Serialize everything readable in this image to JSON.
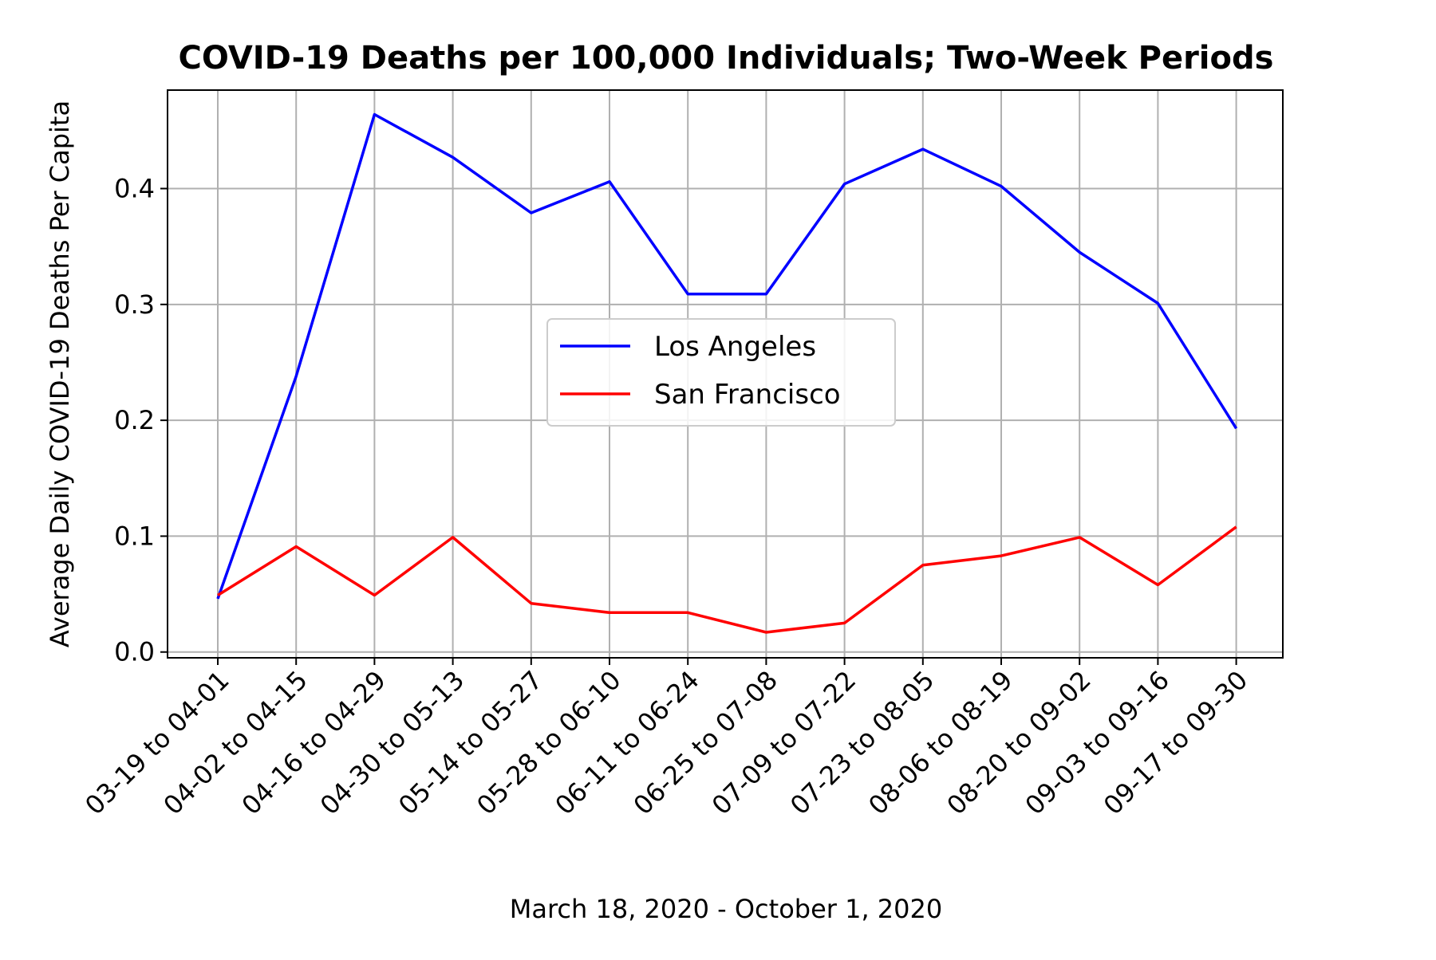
{
  "chart_data": {
    "type": "line",
    "title": "COVID-19 Deaths per 100,000 Individuals; Two-Week Periods",
    "xlabel": "March 18, 2020 - October 1, 2020",
    "ylabel": "Average Daily COVID-19 Deaths Per Capita",
    "categories": [
      "03-19 to 04-01",
      "04-02 to 04-15",
      "04-16 to 04-29",
      "04-30 to 05-13",
      "05-14 to 05-27",
      "05-28 to 06-10",
      "06-11 to 06-24",
      "06-25 to 07-08",
      "07-09 to 07-22",
      "07-23 to 08-05",
      "08-06 to 08-19",
      "08-20 to 09-02",
      "09-03 to 09-16",
      "09-17 to 09-30"
    ],
    "series": [
      {
        "name": "Los Angeles",
        "color": "#0000ff",
        "values": [
          0.046,
          0.238,
          0.464,
          0.427,
          0.379,
          0.406,
          0.309,
          0.309,
          0.404,
          0.434,
          0.402,
          0.345,
          0.301,
          0.193
        ]
      },
      {
        "name": "San Francisco",
        "color": "#ff0000",
        "values": [
          0.049,
          0.091,
          0.049,
          0.099,
          0.042,
          0.034,
          0.034,
          0.017,
          0.025,
          0.075,
          0.083,
          0.099,
          0.058,
          0.108
        ]
      }
    ],
    "yticks": [
      "0.0",
      "0.1",
      "0.2",
      "0.3",
      "0.4"
    ],
    "ytick_values": [
      0.0,
      0.1,
      0.2,
      0.3,
      0.4
    ],
    "ylim": [
      -0.005,
      0.485
    ],
    "grid": true,
    "legend_position": "center"
  }
}
